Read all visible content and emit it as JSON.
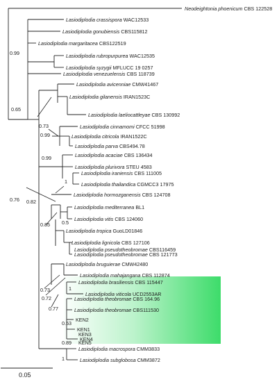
{
  "taxa": [
    {
      "species": "Neodeightonia phoenicum",
      "strain": "CBS 122528"
    },
    {
      "species": "Lasiodiplodia crassispora",
      "strain": "WAC12533"
    },
    {
      "species": "Lasiodiplodia gonubiensis",
      "strain": "CBS115812"
    },
    {
      "species": "Lasiodiplodia margaritacea",
      "strain": "CBS122519"
    },
    {
      "species": "Lasiodiplodia rubropurpurea",
      "strain": "WAC12535"
    },
    {
      "species": "Lasiodiplodia syzygii",
      "strain": "MFLUCC 19 0257"
    },
    {
      "species": "Lasiodiplodia venezuelensis",
      "strain": "CBS 118739"
    },
    {
      "species": "Lasiodiplodia avicenniae",
      "strain": "CMW41467"
    },
    {
      "species": "Lasiodiplodia gilanensis",
      "strain": "IRAN1523C"
    },
    {
      "species": "Lasiodiplodia laeliocattleyae",
      "strain": "CBS 130992"
    },
    {
      "species": "Lasiodiplodia cinnamomi",
      "strain": "CFCC 51998"
    },
    {
      "species": "Lasiodiplodia citricola",
      "strain": "IRAN1522C"
    },
    {
      "species": "Lasiodiplodia parva",
      "strain": "CBS494.78"
    },
    {
      "species": "Lasiodiplodia acaciae",
      "strain": "CBS 136434"
    },
    {
      "species": "Lasiodiplodia plurivora",
      "strain": "STEU 4583"
    },
    {
      "species": "Lasiodiplodia iraniensis",
      "strain": "CBS 111005"
    },
    {
      "species": "Lasiodiplodia thailandica",
      "strain": "CGMCC3 17975"
    },
    {
      "species": "Lasiodiplodia hormozganensis",
      "strain": "CBS 124708"
    },
    {
      "species": "Lasiodiplodia mediterranea",
      "strain": "BL1"
    },
    {
      "species": "Lasiodiplodia  vitis",
      "strain": "CBS 124060"
    },
    {
      "species": "Lasiodiplodia tropica",
      "strain": "GuoLD01846"
    },
    {
      "species": "Lasiodiplodia lignicola",
      "strain": "CBS 127106"
    },
    {
      "species": "Lasiodiplodia pseudotheobromae",
      "strain": "CBS116459"
    },
    {
      "species": "Lasiodiplodia pseudotheobromae",
      "strain": "CBS 121773"
    },
    {
      "species": "Lasiodiplodia bruguierae",
      "strain": "CMW42480"
    },
    {
      "species": "Lasiodiplodia mahajangana",
      "strain": "CBS 112874"
    },
    {
      "species": "Lasiodiplodia brasiliensis",
      "strain": "CBS 115447"
    },
    {
      "species": "Lasiodiplodia viticola",
      "strain": "UCD2553AR"
    },
    {
      "species": "Lasiodiplodia theobromae",
      "strain": "CBS 164.96"
    },
    {
      "species": "Lasiodiplodia theobromae",
      "strain": "CBS111530"
    },
    {
      "species": "",
      "strain": "KEN2"
    },
    {
      "species": "",
      "strain": "KEN1"
    },
    {
      "species": "",
      "strain": "KEN3"
    },
    {
      "species": "",
      "strain": "KEN4"
    },
    {
      "species": "",
      "strain": "KEN5"
    },
    {
      "species": "Lasiodiplodia macrospora",
      "strain": "CMM3833"
    },
    {
      "species": "Lasiodiplodia subglobosa",
      "strain": "CMM3872"
    }
  ],
  "support_values": [
    "0.99",
    "0.65",
    "0.73",
    "0.99",
    "0.99",
    "1",
    "0.76",
    "0.82",
    "0.85",
    "0.5",
    "0.73",
    "1",
    "0.72",
    "0.53",
    "0.77",
    "0.89",
    "1"
  ],
  "scale_bar": {
    "label": "0.05"
  },
  "colors": {
    "highlight": "#3ddc6a",
    "branch": "#222222"
  }
}
